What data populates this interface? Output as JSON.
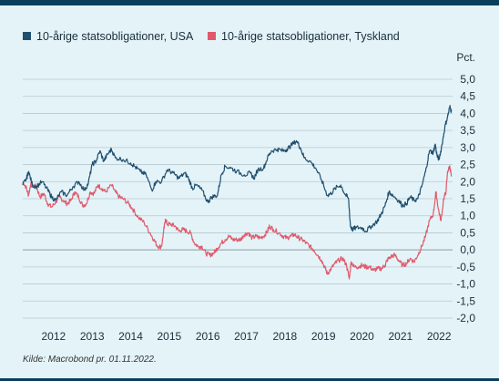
{
  "chart_data": {
    "type": "line",
    "title": "",
    "xlabel": "",
    "ylabel": "Pct.",
    "ylim": [
      -2.0,
      5.0
    ],
    "xlim": [
      2011.7,
      2022.85
    ],
    "y_ticks": [
      "5,0",
      "4,5",
      "4,0",
      "3,5",
      "3,0",
      "2,5",
      "2,0",
      "1,5",
      "1,0",
      "0,5",
      "0,0",
      "-0,5",
      "-1,0",
      "-1,5",
      "-2,0"
    ],
    "x_ticks": [
      "2012",
      "2013",
      "2014",
      "2015",
      "2016",
      "2017",
      "2018",
      "2019",
      "2020",
      "2021",
      "2022"
    ],
    "legend_position": "top-left",
    "grid": "horizontal",
    "series": [
      {
        "name": "10-årige statsobligationer, USA",
        "color": "#1f4e6e",
        "points": [
          [
            2011.7,
            1.9
          ],
          [
            2011.8,
            2.1
          ],
          [
            2011.85,
            2.3
          ],
          [
            2011.95,
            1.9
          ],
          [
            2012.05,
            1.85
          ],
          [
            2012.2,
            2.0
          ],
          [
            2012.35,
            1.75
          ],
          [
            2012.45,
            1.55
          ],
          [
            2012.55,
            1.45
          ],
          [
            2012.7,
            1.7
          ],
          [
            2012.85,
            1.6
          ],
          [
            2013.0,
            1.85
          ],
          [
            2013.15,
            2.0
          ],
          [
            2013.3,
            1.75
          ],
          [
            2013.4,
            1.95
          ],
          [
            2013.5,
            2.5
          ],
          [
            2013.6,
            2.6
          ],
          [
            2013.7,
            2.9
          ],
          [
            2013.8,
            2.6
          ],
          [
            2013.9,
            2.8
          ],
          [
            2014.0,
            2.95
          ],
          [
            2014.1,
            2.7
          ],
          [
            2014.3,
            2.65
          ],
          [
            2014.5,
            2.55
          ],
          [
            2014.6,
            2.45
          ],
          [
            2014.75,
            2.3
          ],
          [
            2014.9,
            2.2
          ],
          [
            2015.05,
            1.75
          ],
          [
            2015.15,
            2.0
          ],
          [
            2015.3,
            2.0
          ],
          [
            2015.45,
            2.35
          ],
          [
            2015.6,
            2.25
          ],
          [
            2015.75,
            2.1
          ],
          [
            2015.9,
            2.25
          ],
          [
            2016.0,
            2.1
          ],
          [
            2016.1,
            1.8
          ],
          [
            2016.2,
            1.9
          ],
          [
            2016.35,
            1.75
          ],
          [
            2016.5,
            1.4
          ],
          [
            2016.6,
            1.55
          ],
          [
            2016.75,
            1.6
          ],
          [
            2016.85,
            2.2
          ],
          [
            2016.95,
            2.45
          ],
          [
            2017.1,
            2.4
          ],
          [
            2017.25,
            2.3
          ],
          [
            2017.45,
            2.2
          ],
          [
            2017.6,
            2.25
          ],
          [
            2017.7,
            2.1
          ],
          [
            2017.8,
            2.35
          ],
          [
            2017.95,
            2.4
          ],
          [
            2018.05,
            2.7
          ],
          [
            2018.15,
            2.9
          ],
          [
            2018.3,
            2.95
          ],
          [
            2018.45,
            2.9
          ],
          [
            2018.55,
            2.95
          ],
          [
            2018.65,
            3.05
          ],
          [
            2018.8,
            3.2
          ],
          [
            2018.9,
            3.0
          ],
          [
            2019.0,
            2.7
          ],
          [
            2019.15,
            2.6
          ],
          [
            2019.3,
            2.4
          ],
          [
            2019.45,
            2.05
          ],
          [
            2019.6,
            1.6
          ],
          [
            2019.7,
            1.65
          ],
          [
            2019.8,
            1.8
          ],
          [
            2019.95,
            1.9
          ],
          [
            2020.05,
            1.65
          ],
          [
            2020.15,
            1.5
          ],
          [
            2020.2,
            0.7
          ],
          [
            2020.25,
            0.6
          ],
          [
            2020.35,
            0.65
          ],
          [
            2020.5,
            0.65
          ],
          [
            2020.6,
            0.55
          ],
          [
            2020.75,
            0.7
          ],
          [
            2020.9,
            0.85
          ],
          [
            2021.0,
            1.05
          ],
          [
            2021.1,
            1.3
          ],
          [
            2021.2,
            1.7
          ],
          [
            2021.3,
            1.6
          ],
          [
            2021.45,
            1.45
          ],
          [
            2021.55,
            1.3
          ],
          [
            2021.65,
            1.35
          ],
          [
            2021.75,
            1.55
          ],
          [
            2021.85,
            1.45
          ],
          [
            2021.95,
            1.5
          ],
          [
            2022.05,
            1.85
          ],
          [
            2022.15,
            2.3
          ],
          [
            2022.25,
            2.9
          ],
          [
            2022.35,
            2.85
          ],
          [
            2022.4,
            3.1
          ],
          [
            2022.45,
            2.75
          ],
          [
            2022.5,
            2.65
          ],
          [
            2022.58,
            3.1
          ],
          [
            2022.65,
            3.6
          ],
          [
            2022.72,
            3.9
          ],
          [
            2022.78,
            4.2
          ],
          [
            2022.82,
            4.05
          ]
        ]
      },
      {
        "name": "10-årige statsobligationer, Tyskland",
        "color": "#e05a6b",
        "points": [
          [
            2011.7,
            2.0
          ],
          [
            2011.78,
            1.85
          ],
          [
            2011.85,
            1.6
          ],
          [
            2011.9,
            1.9
          ],
          [
            2011.95,
            1.9
          ],
          [
            2012.05,
            1.85
          ],
          [
            2012.15,
            1.55
          ],
          [
            2012.25,
            1.65
          ],
          [
            2012.35,
            1.35
          ],
          [
            2012.45,
            1.25
          ],
          [
            2012.55,
            1.4
          ],
          [
            2012.65,
            1.55
          ],
          [
            2012.75,
            1.45
          ],
          [
            2012.85,
            1.35
          ],
          [
            2012.95,
            1.45
          ],
          [
            2013.05,
            1.7
          ],
          [
            2013.15,
            1.55
          ],
          [
            2013.25,
            1.3
          ],
          [
            2013.35,
            1.35
          ],
          [
            2013.45,
            1.7
          ],
          [
            2013.55,
            1.65
          ],
          [
            2013.65,
            1.9
          ],
          [
            2013.75,
            1.8
          ],
          [
            2013.85,
            1.7
          ],
          [
            2014.0,
            1.9
          ],
          [
            2014.1,
            1.7
          ],
          [
            2014.2,
            1.55
          ],
          [
            2014.3,
            1.5
          ],
          [
            2014.45,
            1.35
          ],
          [
            2014.55,
            1.2
          ],
          [
            2014.7,
            0.95
          ],
          [
            2014.85,
            0.8
          ],
          [
            2015.0,
            0.5
          ],
          [
            2015.1,
            0.3
          ],
          [
            2015.2,
            0.1
          ],
          [
            2015.3,
            0.1
          ],
          [
            2015.35,
            0.5
          ],
          [
            2015.4,
            0.9
          ],
          [
            2015.45,
            0.75
          ],
          [
            2015.55,
            0.75
          ],
          [
            2015.65,
            0.7
          ],
          [
            2015.75,
            0.55
          ],
          [
            2015.85,
            0.6
          ],
          [
            2015.95,
            0.55
          ],
          [
            2016.05,
            0.5
          ],
          [
            2016.15,
            0.2
          ],
          [
            2016.25,
            0.1
          ],
          [
            2016.35,
            0.1
          ],
          [
            2016.45,
            -0.1
          ],
          [
            2016.55,
            -0.15
          ],
          [
            2016.65,
            -0.1
          ],
          [
            2016.75,
            0.05
          ],
          [
            2016.85,
            0.2
          ],
          [
            2016.95,
            0.3
          ],
          [
            2017.05,
            0.4
          ],
          [
            2017.15,
            0.3
          ],
          [
            2017.25,
            0.3
          ],
          [
            2017.35,
            0.3
          ],
          [
            2017.45,
            0.45
          ],
          [
            2017.55,
            0.5
          ],
          [
            2017.65,
            0.35
          ],
          [
            2017.75,
            0.4
          ],
          [
            2017.85,
            0.35
          ],
          [
            2017.95,
            0.4
          ],
          [
            2018.05,
            0.55
          ],
          [
            2018.1,
            0.7
          ],
          [
            2018.2,
            0.6
          ],
          [
            2018.35,
            0.5
          ],
          [
            2018.45,
            0.4
          ],
          [
            2018.55,
            0.35
          ],
          [
            2018.65,
            0.4
          ],
          [
            2018.75,
            0.45
          ],
          [
            2018.85,
            0.35
          ],
          [
            2018.95,
            0.3
          ],
          [
            2019.05,
            0.2
          ],
          [
            2019.15,
            0.1
          ],
          [
            2019.25,
            0.0
          ],
          [
            2019.35,
            -0.15
          ],
          [
            2019.45,
            -0.3
          ],
          [
            2019.55,
            -0.55
          ],
          [
            2019.6,
            -0.7
          ],
          [
            2019.7,
            -0.55
          ],
          [
            2019.8,
            -0.4
          ],
          [
            2019.9,
            -0.3
          ],
          [
            2020.0,
            -0.25
          ],
          [
            2020.1,
            -0.45
          ],
          [
            2020.17,
            -0.85
          ],
          [
            2020.22,
            -0.35
          ],
          [
            2020.3,
            -0.5
          ],
          [
            2020.4,
            -0.5
          ],
          [
            2020.5,
            -0.45
          ],
          [
            2020.6,
            -0.5
          ],
          [
            2020.7,
            -0.5
          ],
          [
            2020.8,
            -0.6
          ],
          [
            2020.9,
            -0.55
          ],
          [
            2021.0,
            -0.55
          ],
          [
            2021.1,
            -0.45
          ],
          [
            2021.15,
            -0.3
          ],
          [
            2021.25,
            -0.2
          ],
          [
            2021.35,
            -0.15
          ],
          [
            2021.45,
            -0.3
          ],
          [
            2021.55,
            -0.45
          ],
          [
            2021.65,
            -0.4
          ],
          [
            2021.75,
            -0.25
          ],
          [
            2021.85,
            -0.35
          ],
          [
            2021.95,
            -0.15
          ],
          [
            2022.05,
            0.1
          ],
          [
            2022.15,
            0.4
          ],
          [
            2022.25,
            0.85
          ],
          [
            2022.35,
            1.05
          ],
          [
            2022.42,
            1.7
          ],
          [
            2022.48,
            1.2
          ],
          [
            2022.55,
            0.85
          ],
          [
            2022.62,
            1.5
          ],
          [
            2022.68,
            1.7
          ],
          [
            2022.72,
            2.3
          ],
          [
            2022.78,
            2.45
          ],
          [
            2022.82,
            2.15
          ]
        ]
      }
    ]
  },
  "source_note": "Kilde: Macrobond pr. 01.11.2022."
}
